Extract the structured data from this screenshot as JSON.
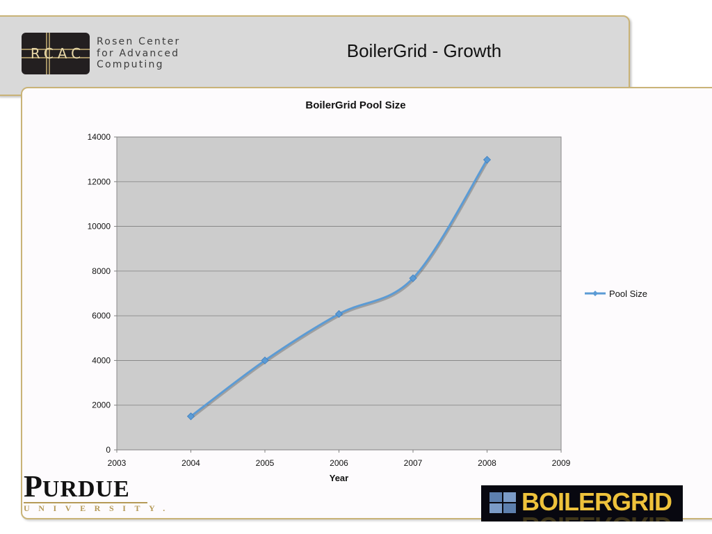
{
  "slide": {
    "title": "BoilerGrid - Growth"
  },
  "rcac_logo": {
    "letters": "RCAC",
    "name_lines": [
      "Rosen Center",
      "for Advanced",
      "Computing"
    ]
  },
  "purdue_logo": {
    "word": "PURDUE",
    "subtitle": "UNIVERSITY."
  },
  "boilergrid_logo": {
    "text": "BOILERGRID"
  },
  "colors": {
    "header_bg": "#d9d9d9",
    "panel_border": "#c9b377",
    "plot_bg": "#cccccc",
    "series_line": "#5b9bd5",
    "purdue_gold": "#b59a57",
    "boilergrid_gold": "#eec23b"
  },
  "chart_data": {
    "type": "line",
    "title": "BoilerGrid Pool Size",
    "xlabel": "Year",
    "ylabel": "",
    "xlim": [
      2003,
      2009
    ],
    "ylim": [
      0,
      14000
    ],
    "x_ticks": [
      "2003",
      "2004",
      "2005",
      "2006",
      "2007",
      "2008",
      "2009"
    ],
    "y_ticks": [
      "0",
      "2000",
      "4000",
      "6000",
      "8000",
      "10000",
      "12000",
      "14000"
    ],
    "grid": true,
    "smooth": true,
    "legend": "right",
    "series": [
      {
        "name": "Pool Size",
        "x": [
          2004,
          2005,
          2006,
          2007,
          2008
        ],
        "values": [
          1500,
          4000,
          6080,
          7680,
          12980
        ]
      }
    ]
  }
}
